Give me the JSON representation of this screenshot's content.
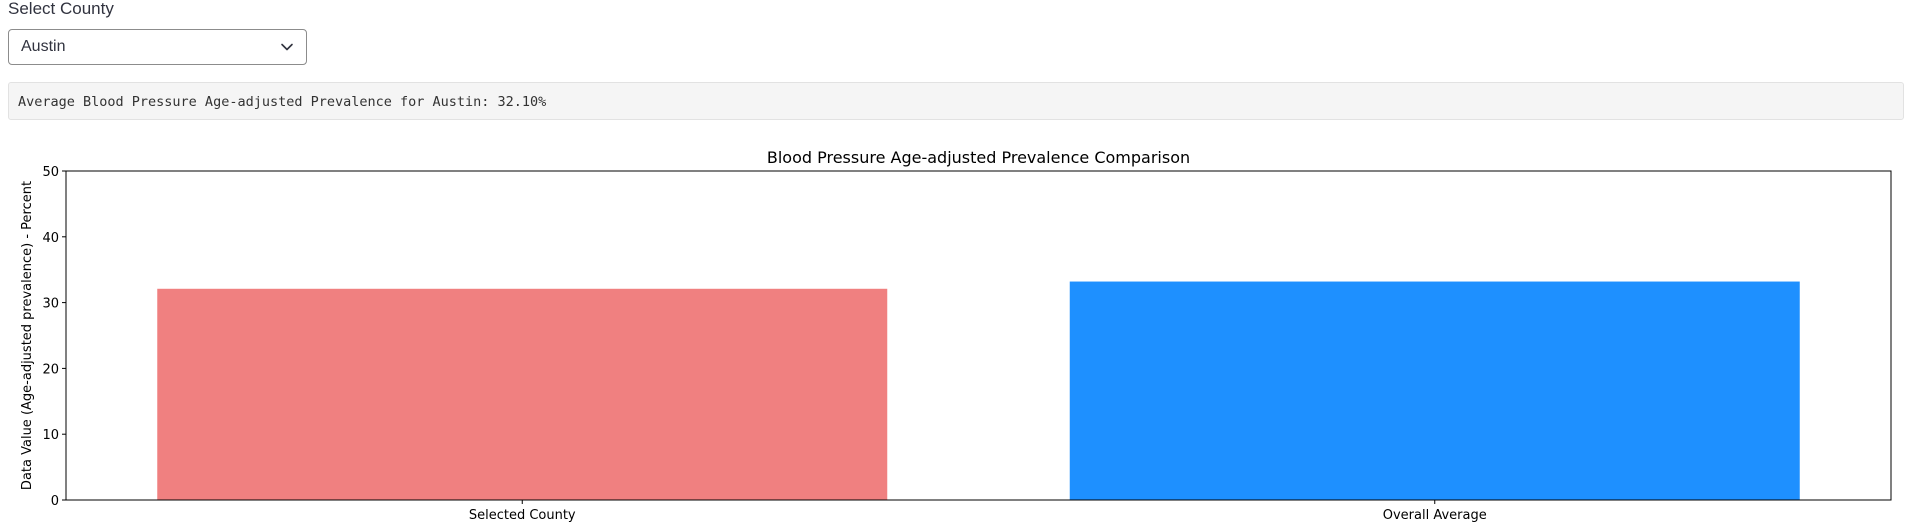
{
  "select": {
    "label": "Select County",
    "value": "Austin",
    "icon": "chevron-down-icon"
  },
  "summary": {
    "text": "Average Blood Pressure Age-adjusted Prevalence for Austin: 32.10%"
  },
  "chart_data": {
    "type": "bar",
    "title": "Blood Pressure Age-adjusted Prevalence Comparison",
    "xlabel": "",
    "ylabel": "Data Value (Age-adjusted prevalence) - Percent",
    "categories": [
      "Selected County",
      "Overall Average"
    ],
    "values": [
      32.1,
      33.2
    ],
    "colors": [
      "#f08080",
      "#1e90ff"
    ],
    "ylim": [
      0,
      50
    ],
    "yticks": [
      0,
      10,
      20,
      30,
      40,
      50
    ],
    "ytick_labels": [
      "0",
      "10",
      "20",
      "30",
      "40",
      "50"
    ],
    "grid": false,
    "legend": "none"
  }
}
